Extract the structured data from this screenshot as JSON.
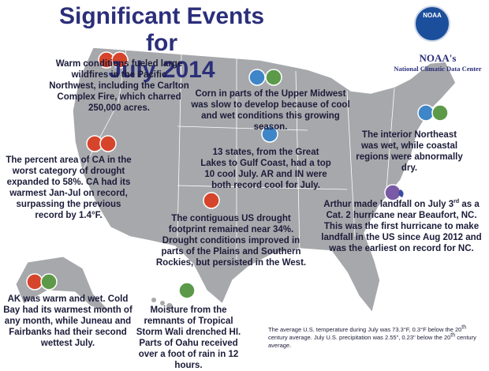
{
  "header": {
    "title_lines": [
      "Significant Events for",
      "July 2014"
    ],
    "logo": "NOAA",
    "org": "NOAA's",
    "center": "National Climatic Data Center"
  },
  "events": [
    {
      "text": [
        "Warm conditions fueled large wildfires in the Pacific Northwest, including the Carlton Complex Fire, which charred 250,000 acres."
      ]
    },
    {
      "text": [
        "Corn in parts of the Upper Midwest was slow to develop because of cool and wet conditions this growing season."
      ]
    },
    {
      "text": [
        "The interior Northeast was wet, while coastal regions were abnormally dry."
      ]
    },
    {
      "text": [
        "The percent area of CA in the worst category of drought expanded to 58%. CA had its warmest Jan-Jul on record, surpassing the previous record by 1.4°F."
      ]
    },
    {
      "text": [
        "13 states, from the Great Lakes to Gulf Coast, had a top 10 cool July. AR and IN were both record cool for July."
      ]
    },
    {
      "text": [
        "The contiguous US drought footprint remained near 34%. Drought conditions improved in parts of the Plains and Southern Rockies, but persisted in the West."
      ]
    },
    {
      "text": [
        "Arthur made landfall on July 3",
        "rd",
        " as a Cat. 2 hurricane near Beaufort, NC. This was the first hurricane to make landfall in the US since Aug 2012 and was the earliest on record for NC."
      ]
    },
    {
      "text": [
        "AK was warm and wet. Cold Bay had its warmest month of any month, while Juneau and Fairbanks had their second wettest July."
      ]
    },
    {
      "text": [
        "Moisture from the remnants of Tropical Storm Wali drenched HI. Parts of Oahu received over a foot of rain in 12 hours."
      ]
    }
  ],
  "footnote": [
    "The average U.S. temperature during July was 73.3°F, 0.3°F below the 20",
    "th",
    " century average. July U.S. precipitation was 2.55\", 0.23\" below the 20",
    "th",
    " century average."
  ]
}
